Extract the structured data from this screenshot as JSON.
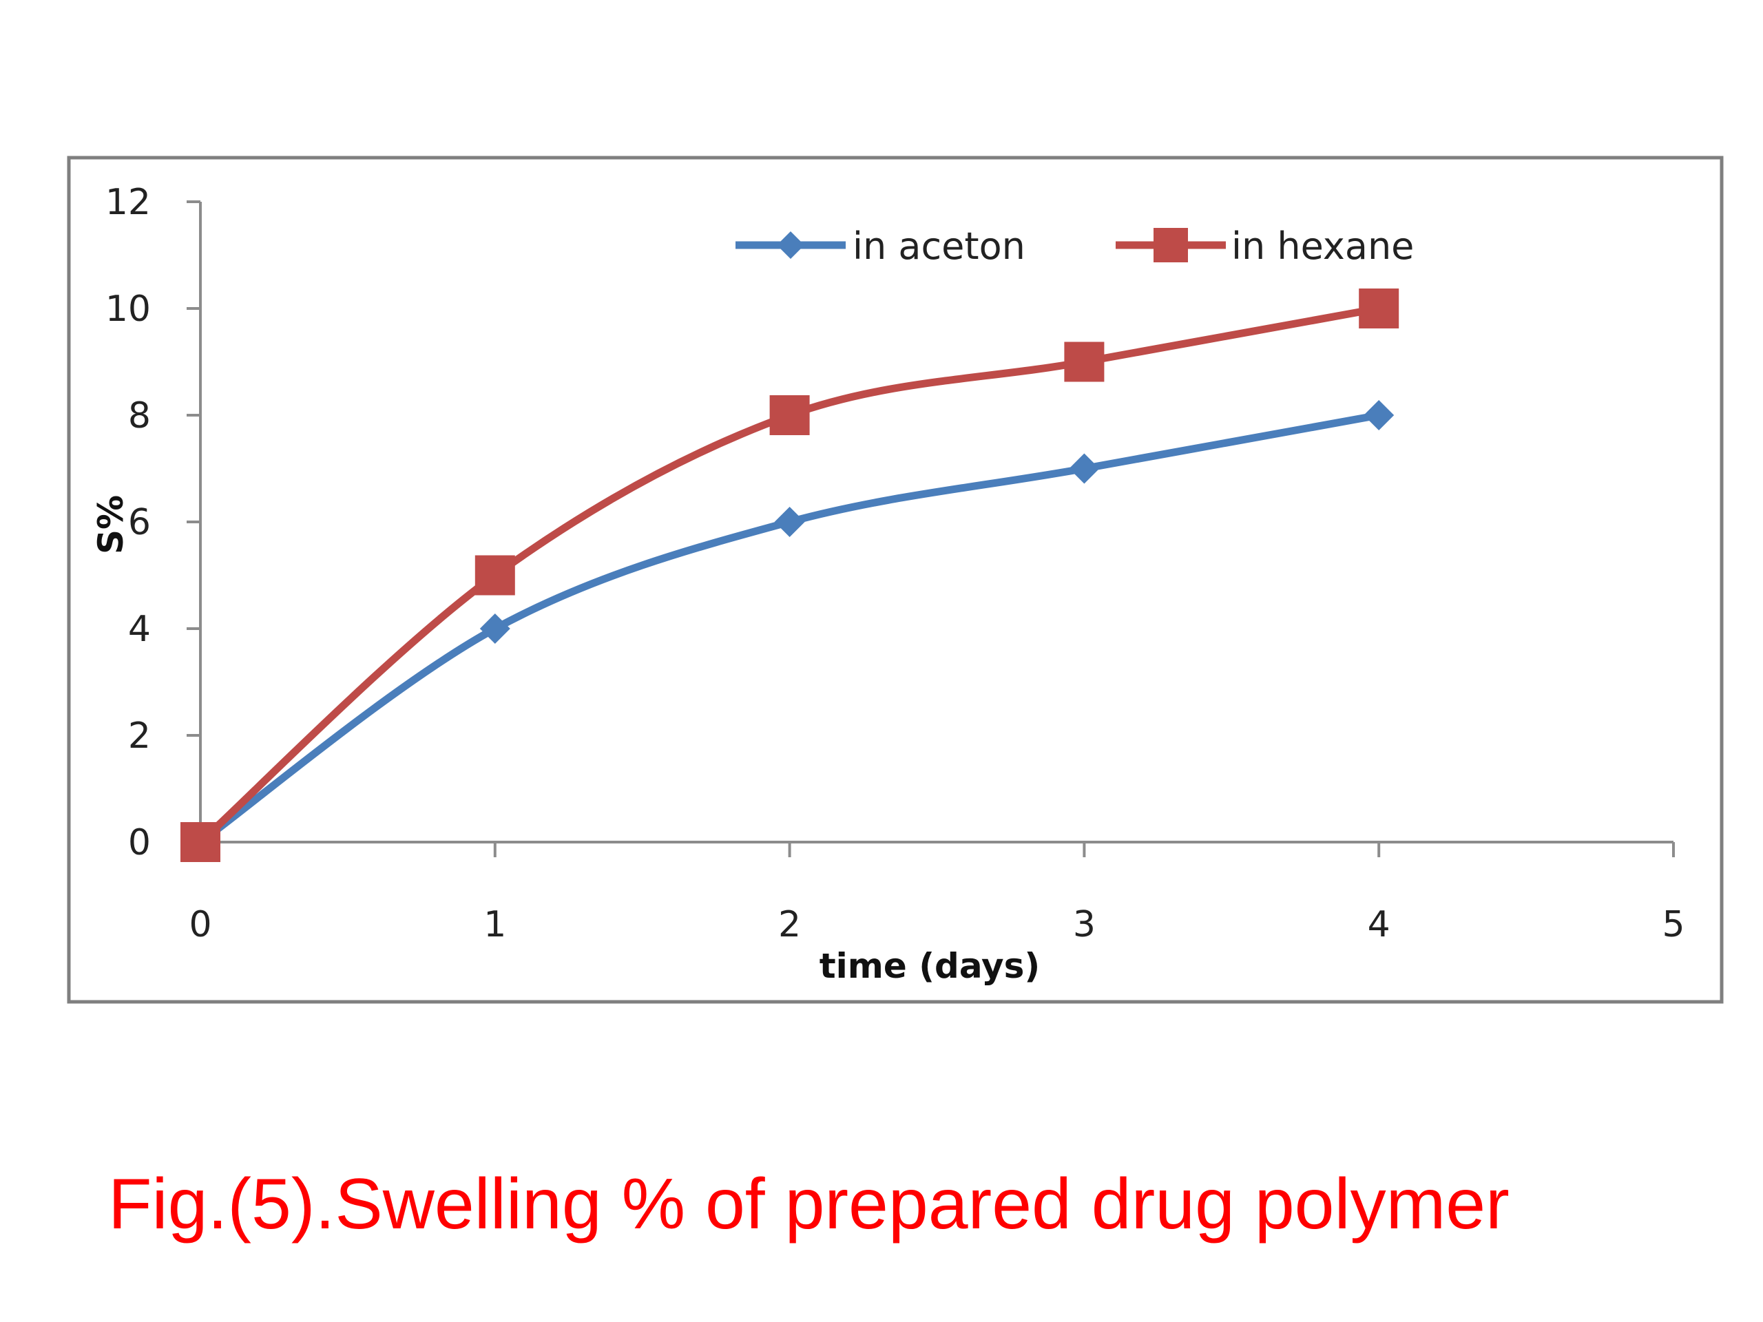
{
  "caption": "Fig.(5).Swelling % of prepared drug polymer",
  "colors": {
    "caption": "#ff0000",
    "acetone": "#4a7ebb",
    "hexane": "#be4b48",
    "frame": "#7f7f7f",
    "axis": "#8c8c8c"
  },
  "chart_data": {
    "type": "line",
    "title": "",
    "xlabel": "time (days)",
    "ylabel": "S%",
    "xlim": [
      0,
      5
    ],
    "ylim": [
      0,
      12
    ],
    "x_ticks": [
      0,
      1,
      2,
      3,
      4,
      5
    ],
    "y_ticks": [
      0,
      2,
      4,
      6,
      8,
      10,
      12
    ],
    "grid": false,
    "legend_position": "top",
    "series": [
      {
        "name": "in aceton",
        "marker": "diamond",
        "color": "#4a7ebb",
        "x": [
          0,
          1,
          2,
          3,
          4
        ],
        "y": [
          0,
          4,
          6,
          7,
          8
        ]
      },
      {
        "name": "in hexane",
        "marker": "square",
        "color": "#be4b48",
        "x": [
          0,
          1,
          2,
          3,
          4
        ],
        "y": [
          0,
          5,
          8,
          9,
          10
        ]
      }
    ]
  }
}
